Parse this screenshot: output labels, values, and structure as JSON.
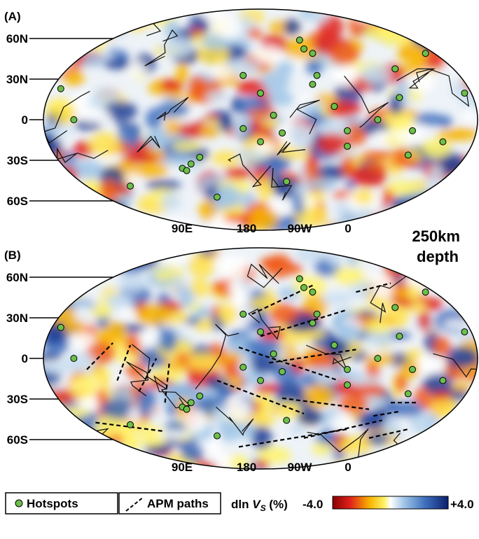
{
  "panels": [
    {
      "label": "(A)",
      "lat_labels": [
        "60N",
        "30N",
        "0",
        "30S",
        "60S"
      ],
      "lon_labels": [
        "90E",
        "180",
        "90W",
        "0"
      ]
    },
    {
      "label": "(B)",
      "lat_labels": [
        "60N",
        "30N",
        "0",
        "30S",
        "60S"
      ],
      "lon_labels": [
        "90E",
        "180",
        "90W",
        "0"
      ]
    }
  ],
  "annotation": {
    "line1": "250km",
    "line2": "depth"
  },
  "legend": {
    "hotspots": "Hotspots",
    "apm": "APM paths",
    "scale_prefix": "dln ",
    "scale_var": "V",
    "scale_sub": "S",
    "scale_suffix": " (%)",
    "min": "-4.0",
    "max": "+4.0"
  }
}
